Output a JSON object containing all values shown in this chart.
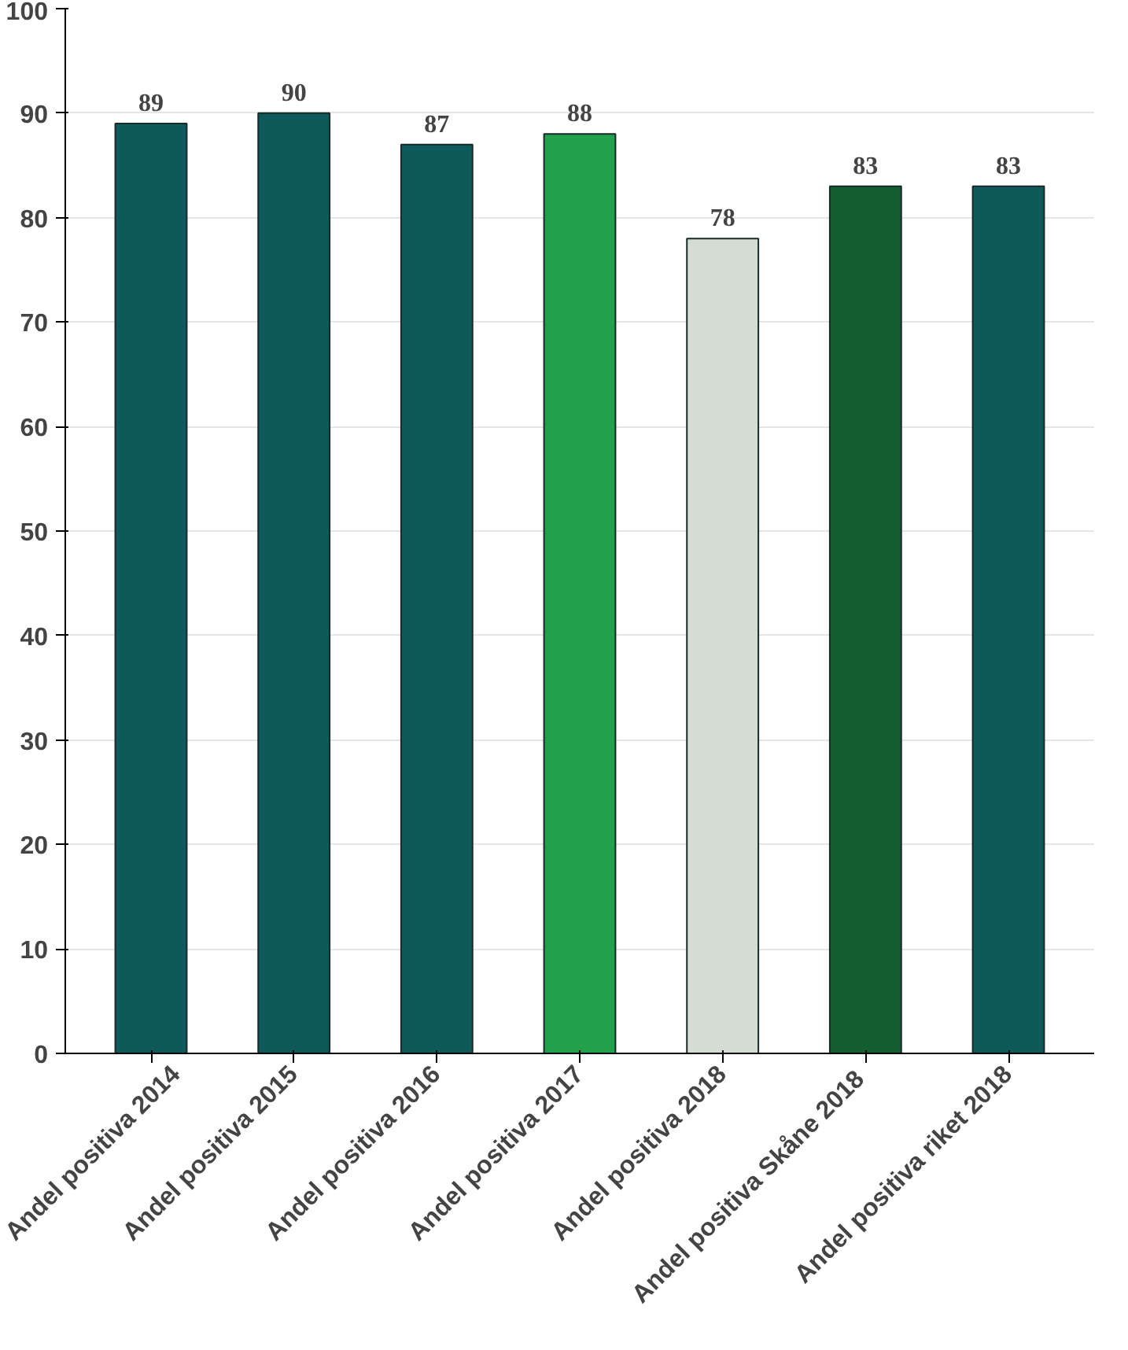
{
  "chart_data": {
    "type": "bar",
    "categories": [
      "Andel positiva 2014",
      "Andel positiva 2015",
      "Andel positiva 2016",
      "Andel positiva 2017",
      "Andel positiva 2018",
      "Andel positiva  Skåne 2018",
      "Andel positiva riket 2018"
    ],
    "values": [
      89,
      90,
      87,
      88,
      78,
      83,
      83
    ],
    "colors": [
      "#0e5a5a",
      "#0e5a5a",
      "#0e5a5a",
      "#22a04c",
      "#d4dcd4",
      "#145f30",
      "#0e5a5a"
    ],
    "ylim": [
      0,
      100
    ],
    "yticks": [
      0,
      10,
      20,
      30,
      40,
      50,
      60,
      70,
      80,
      90,
      100
    ],
    "grid": "y",
    "data_labels": true
  }
}
